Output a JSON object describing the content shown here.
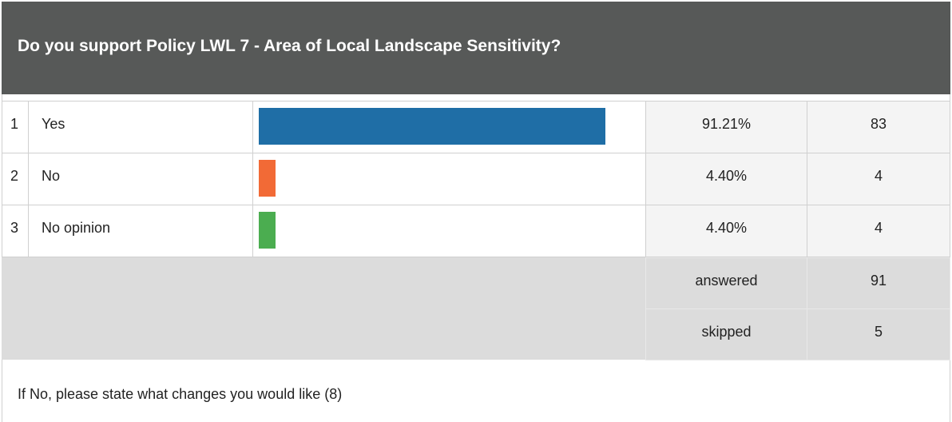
{
  "title": "Do you support Policy LWL 7 - Area of Local Landscape Sensitivity?",
  "rows": [
    {
      "index": "1",
      "label": "Yes",
      "percent": 91.21,
      "percent_label": "91.21%",
      "count": "83",
      "color": "#1f6ea6"
    },
    {
      "index": "2",
      "label": "No",
      "percent": 4.4,
      "percent_label": "4.40%",
      "count": "4",
      "color": "#f26a36"
    },
    {
      "index": "3",
      "label": "No opinion",
      "percent": 4.4,
      "percent_label": "4.40%",
      "count": "4",
      "color": "#4bad50"
    }
  ],
  "summary": [
    {
      "label": "answered",
      "value": "91"
    },
    {
      "label": "skipped",
      "value": "5"
    }
  ],
  "footer": "If No, please state what changes you would like (8)"
}
